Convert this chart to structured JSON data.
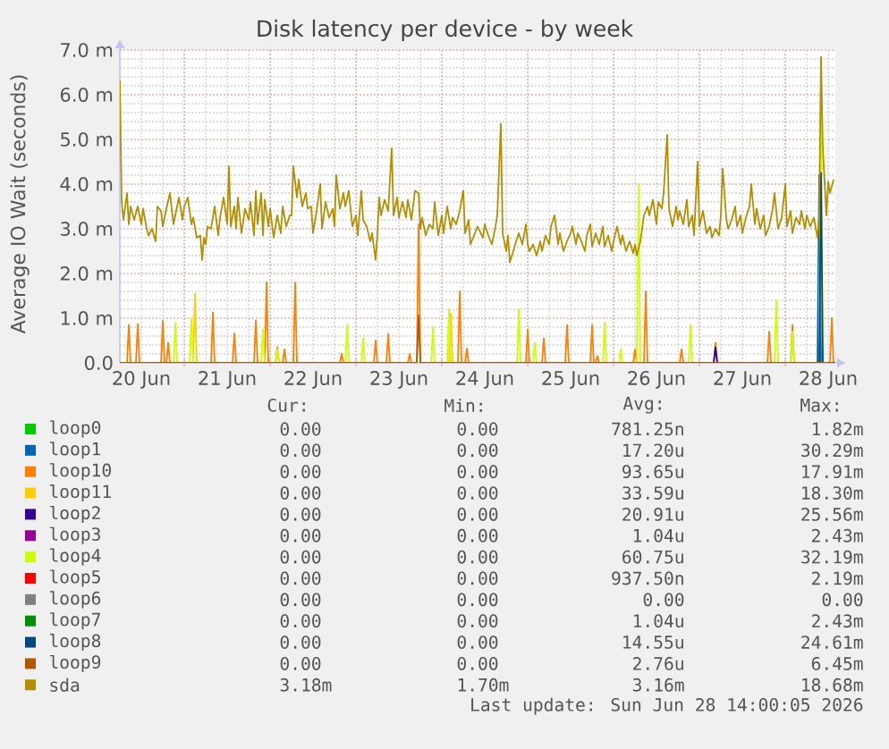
{
  "chart_data": {
    "type": "line",
    "title": "Disk latency per device - by week",
    "ylabel": "Average IO Wait (seconds)",
    "xlim": [
      "2026-06-20T06:00",
      "2026-06-28T14:00"
    ],
    "xticks": [
      {
        "value": "2026-06-20T12:00",
        "label": "20 Jun"
      },
      {
        "value": "2026-06-21T00:00",
        "label": null
      },
      {
        "value": "2026-06-21T12:00",
        "label": "21 Jun"
      },
      {
        "value": "2026-06-22T00:00",
        "label": null
      },
      {
        "value": "2026-06-22T12:00",
        "label": "22 Jun"
      },
      {
        "value": "2026-06-23T00:00",
        "label": null
      },
      {
        "value": "2026-06-23T12:00",
        "label": "23 Jun"
      },
      {
        "value": "2026-06-24T00:00",
        "label": null
      },
      {
        "value": "2026-06-24T12:00",
        "label": "24 Jun"
      },
      {
        "value": "2026-06-25T00:00",
        "label": null
      },
      {
        "value": "2026-06-25T12:00",
        "label": "25 Jun"
      },
      {
        "value": "2026-06-26T00:00",
        "label": null
      },
      {
        "value": "2026-06-26T12:00",
        "label": "26 Jun"
      },
      {
        "value": "2026-06-27T00:00",
        "label": null
      },
      {
        "value": "2026-06-27T12:00",
        "label": "27 Jun"
      },
      {
        "value": "2026-06-28T00:00",
        "label": null
      },
      {
        "value": "2026-06-28T12:00",
        "label": "28 Jun"
      }
    ],
    "ylim": [
      0,
      7
    ],
    "yticks": [
      {
        "value": 0,
        "label": "0.0"
      },
      {
        "value": 1,
        "label": "1.0 m"
      },
      {
        "value": 2,
        "label": "2.0 m"
      },
      {
        "value": 3,
        "label": "3.0 m"
      },
      {
        "value": 4,
        "label": "4.0 m"
      },
      {
        "value": 5,
        "label": "5.0 m"
      },
      {
        "value": 6,
        "label": "6.0 m"
      },
      {
        "value": 7,
        "label": "7.0 m"
      }
    ],
    "grid": true,
    "legend": "bottom",
    "series": [
      {
        "name": "loop0",
        "color": "#00cc00"
      },
      {
        "name": "loop1",
        "color": "#0066b3",
        "x": [
          "2026-06-28T09:00",
          "2026-06-28T09:30",
          "2026-06-28T10:00"
        ],
        "values": [
          0,
          4.2,
          0
        ]
      },
      {
        "name": "loop10",
        "color": "#ff8000",
        "x": [
          "2026-06-20T08:00",
          "2026-06-20T08:30",
          "2026-06-20T09:00",
          "2026-06-20T09:30",
          "2026-06-20T10:30",
          "2026-06-20T11:00",
          "2026-06-20T11:30",
          "2026-06-20T12:00",
          "2026-06-20T17:30",
          "2026-06-20T18:00",
          "2026-06-20T18:30",
          "2026-06-20T19:00",
          "2026-06-20T19:30",
          "2026-06-20T20:00",
          "2026-06-20T20:30",
          "2026-06-21T07:30",
          "2026-06-21T08:00",
          "2026-06-21T08:30",
          "2026-06-21T09:00",
          "2026-06-21T13:30",
          "2026-06-21T14:00",
          "2026-06-21T14:30",
          "2026-06-21T15:00",
          "2026-06-21T19:30",
          "2026-06-21T20:00",
          "2026-06-21T20:30",
          "2026-06-21T21:00",
          "2026-06-21T22:30",
          "2026-06-21T23:00",
          "2026-06-21T23:30",
          "2026-06-22T00:00",
          "2026-06-22T01:30",
          "2026-06-22T02:00",
          "2026-06-22T02:30",
          "2026-06-22T03:00",
          "2026-06-22T03:30",
          "2026-06-22T04:00",
          "2026-06-22T04:30",
          "2026-06-22T05:00",
          "2026-06-22T06:30",
          "2026-06-22T07:00",
          "2026-06-22T07:30",
          "2026-06-22T08:00",
          "2026-06-22T19:30",
          "2026-06-22T20:00",
          "2026-06-22T20:30",
          "2026-06-22T21:00",
          "2026-06-23T05:00",
          "2026-06-23T05:30",
          "2026-06-23T06:00",
          "2026-06-23T06:30",
          "2026-06-23T08:30",
          "2026-06-23T09:00",
          "2026-06-23T09:30",
          "2026-06-23T10:00",
          "2026-06-23T14:30",
          "2026-06-23T15:00",
          "2026-06-23T15:30",
          "2026-06-23T16:00",
          "2026-06-23T17:00",
          "2026-06-23T17:30",
          "2026-06-23T18:00",
          "2026-06-23T18:30",
          "2026-06-24T04:30",
          "2026-06-24T05:00",
          "2026-06-24T05:30",
          "2026-06-24T06:00",
          "2026-06-24T06:30",
          "2026-06-24T07:00",
          "2026-06-24T07:30",
          "2026-06-24T08:00",
          "2026-06-24T23:30",
          "2026-06-25T00:00",
          "2026-06-25T00:30",
          "2026-06-25T01:00",
          "2026-06-25T04:00",
          "2026-06-25T04:30",
          "2026-06-25T05:00",
          "2026-06-25T05:30",
          "2026-06-25T10:30",
          "2026-06-25T11:00",
          "2026-06-25T11:30",
          "2026-06-25T12:00",
          "2026-06-25T17:30",
          "2026-06-25T18:00",
          "2026-06-25T18:30",
          "2026-06-25T19:00",
          "2026-06-25T19:30",
          "2026-06-25T20:00",
          "2026-06-25T20:30",
          "2026-06-26T05:30",
          "2026-06-26T06:00",
          "2026-06-26T06:30",
          "2026-06-26T07:00",
          "2026-06-26T08:30",
          "2026-06-26T09:00",
          "2026-06-26T09:30",
          "2026-06-26T10:00",
          "2026-06-26T18:30",
          "2026-06-26T19:00",
          "2026-06-26T19:30",
          "2026-06-26T20:00",
          "2026-06-27T04:00",
          "2026-06-27T04:30",
          "2026-06-27T05:00",
          "2026-06-27T05:30",
          "2026-06-27T19:00",
          "2026-06-27T19:30",
          "2026-06-27T20:00",
          "2026-06-27T20:30",
          "2026-06-28T01:30",
          "2026-06-28T02:00",
          "2026-06-28T02:30",
          "2026-06-28T03:00",
          "2026-06-28T12:30",
          "2026-06-28T13:00",
          "2026-06-28T13:30"
        ],
        "values": [
          0,
          0.85,
          0,
          null,
          0,
          0.87,
          0,
          null,
          0,
          0.94,
          0,
          0,
          0.45,
          0,
          null,
          0,
          1.13,
          0,
          null,
          0,
          0.66,
          0,
          null,
          0,
          0.95,
          0,
          null,
          0,
          1.8,
          0,
          null,
          0,
          0.35,
          0,
          null,
          0,
          0.3,
          0,
          null,
          0,
          1.8,
          0,
          null,
          0,
          0.2,
          0,
          null,
          0,
          0.5,
          0,
          null,
          0,
          0.65,
          0,
          null,
          0,
          0.2,
          0,
          null,
          0,
          3.1,
          0,
          null,
          0,
          1.6,
          0,
          null,
          0,
          0.32,
          0,
          null,
          0,
          0.75,
          0,
          null,
          0,
          0.55,
          0,
          null,
          0,
          0.85,
          0,
          null,
          0,
          0.85,
          0,
          0,
          0.15,
          0,
          null,
          0,
          0.3,
          0,
          null,
          0,
          1.6,
          0,
          null,
          0,
          0.3,
          0,
          null,
          0,
          0.45,
          0,
          null,
          0,
          0.7,
          0,
          null,
          0,
          0.85,
          0,
          null,
          0,
          1.0,
          0
        ]
      },
      {
        "name": "loop11",
        "color": "#ffcc00",
        "x": [
          "2026-06-21T02:30",
          "2026-06-21T03:00",
          "2026-06-21T03:30",
          "2026-06-21T04:00",
          "2026-06-24T02:00",
          "2026-06-24T02:30",
          "2026-06-24T03:00"
        ],
        "values": [
          0,
          1.55,
          0,
          null,
          0,
          1.1,
          0
        ]
      },
      {
        "name": "loop2",
        "color": "#330099",
        "x": [
          "2026-06-27T04:00",
          "2026-06-27T04:30",
          "2026-06-27T05:00"
        ],
        "values": [
          0,
          0.35,
          0
        ]
      },
      {
        "name": "loop3",
        "color": "#990099"
      },
      {
        "name": "loop4",
        "color": "#ccff00",
        "x": [
          "2026-06-20T21:00",
          "2026-06-20T21:30",
          "2026-06-20T22:00",
          "2026-06-20T22:30",
          "2026-06-21T01:30",
          "2026-06-21T02:00",
          "2026-06-21T02:30",
          "2026-06-21T03:00",
          "2026-06-21T21:30",
          "2026-06-21T22:00",
          "2026-06-21T22:30",
          "2026-06-21T23:00",
          "2026-06-22T01:30",
          "2026-06-22T02:00",
          "2026-06-22T02:30",
          "2026-06-22T03:00",
          "2026-06-22T21:00",
          "2026-06-22T21:30",
          "2026-06-22T22:00",
          "2026-06-22T22:30",
          "2026-06-23T01:30",
          "2026-06-23T02:00",
          "2026-06-23T02:30",
          "2026-06-23T03:00",
          "2026-06-23T21:00",
          "2026-06-23T21:30",
          "2026-06-23T22:00",
          "2026-06-23T22:30",
          "2026-06-24T01:30",
          "2026-06-24T02:00",
          "2026-06-24T02:30",
          "2026-06-24T03:00",
          "2026-06-24T21:00",
          "2026-06-24T21:30",
          "2026-06-24T22:00",
          "2026-06-24T22:30",
          "2026-06-25T01:30",
          "2026-06-25T02:00",
          "2026-06-25T02:30",
          "2026-06-25T03:00",
          "2026-06-25T21:00",
          "2026-06-25T21:30",
          "2026-06-25T22:00",
          "2026-06-25T22:30",
          "2026-06-26T01:30",
          "2026-06-26T02:00",
          "2026-06-26T02:30",
          "2026-06-26T03:00",
          "2026-06-26T06:30",
          "2026-06-26T07:00",
          "2026-06-26T07:30",
          "2026-06-26T08:00",
          "2026-06-26T21:00",
          "2026-06-26T21:30",
          "2026-06-26T22:00",
          "2026-06-26T22:30",
          "2026-06-27T21:00",
          "2026-06-27T21:30",
          "2026-06-27T22:00",
          "2026-06-27T22:30",
          "2026-06-28T01:30",
          "2026-06-28T02:00",
          "2026-06-28T02:30",
          "2026-06-28T03:00",
          "2026-06-28T09:30",
          "2026-06-28T10:00",
          "2026-06-28T10:30"
        ],
        "values": [
          0,
          0.9,
          0,
          null,
          0,
          1.0,
          0,
          null,
          0,
          0.75,
          0,
          null,
          0,
          0.3,
          0,
          null,
          0,
          0.85,
          0,
          null,
          0,
          0.55,
          0,
          null,
          0,
          0.8,
          0,
          null,
          0,
          1.2,
          0,
          null,
          0,
          1.2,
          0,
          null,
          0,
          0.45,
          0,
          null,
          0,
          0.9,
          0,
          null,
          0,
          0.3,
          0,
          null,
          0,
          4.0,
          0,
          null,
          0,
          0.85,
          0,
          null,
          0,
          1.4,
          0,
          null,
          0,
          0.7,
          0,
          null,
          0,
          6.5,
          0
        ]
      },
      {
        "name": "loop5",
        "color": "#ff0000"
      },
      {
        "name": "loop6",
        "color": "#808080"
      },
      {
        "name": "loop7",
        "color": "#008f00"
      },
      {
        "name": "loop8",
        "color": "#00487d",
        "x": [
          "2026-06-28T09:30",
          "2026-06-28T10:00",
          "2026-06-28T10:30"
        ],
        "values": [
          0,
          4.25,
          0
        ]
      },
      {
        "name": "loop9",
        "color": "#b35a00",
        "x": [
          "2026-06-20T06:00",
          "2026-06-23T17:00",
          "2026-06-23T17:30",
          "2026-06-23T18:00",
          "2026-06-28T14:00"
        ],
        "values": [
          0,
          0,
          1.07,
          0,
          0
        ]
      },
      {
        "name": "sda",
        "color": "#b38f00",
        "x": [
          "2026-06-20T06:00",
          "2026-06-20T06:30",
          "2026-06-20T07:00",
          "2026-06-20T08:00",
          "2026-06-20T08:30",
          "2026-06-20T09:00",
          "2026-06-20T10:00",
          "2026-06-20T11:00",
          "2026-06-20T12:00",
          "2026-06-20T12:30",
          "2026-06-20T13:30",
          "2026-06-20T14:00",
          "2026-06-20T15:00",
          "2026-06-20T16:00",
          "2026-06-20T16:30",
          "2026-06-20T17:30",
          "2026-06-20T18:00",
          "2026-06-20T19:00",
          "2026-06-20T20:00",
          "2026-06-20T21:00",
          "2026-06-20T21:30",
          "2026-06-20T22:30",
          "2026-06-20T23:30",
          "2026-06-21T00:00",
          "2026-06-21T01:00",
          "2026-06-21T02:00",
          "2026-06-21T02:30",
          "2026-06-21T03:30",
          "2026-06-21T04:30",
          "2026-06-21T05:00",
          "2026-06-21T05:30",
          "2026-06-21T06:00",
          "2026-06-21T06:30",
          "2026-06-21T07:30",
          "2026-06-21T08:30",
          "2026-06-21T09:30",
          "2026-06-21T10:00",
          "2026-06-21T11:00",
          "2026-06-21T12:00",
          "2026-06-21T12:30",
          "2026-06-21T13:00",
          "2026-06-21T14:00",
          "2026-06-21T14:30",
          "2026-06-21T15:00",
          "2026-06-21T16:00",
          "2026-06-21T17:00",
          "2026-06-21T18:00",
          "2026-06-21T18:30",
          "2026-06-21T19:30",
          "2026-06-21T20:00",
          "2026-06-21T20:30",
          "2026-06-21T21:30",
          "2026-06-21T22:00",
          "2026-06-21T22:30",
          "2026-06-21T23:30",
          "2026-06-22T00:00",
          "2026-06-22T01:00",
          "2026-06-22T02:00",
          "2026-06-22T03:00",
          "2026-06-22T03:30",
          "2026-06-22T04:30",
          "2026-06-22T05:30",
          "2026-06-22T06:00",
          "2026-06-22T06:30",
          "2026-06-22T07:30",
          "2026-06-22T08:00",
          "2026-06-22T09:00",
          "2026-06-22T10:00",
          "2026-06-22T10:30",
          "2026-06-22T11:30",
          "2026-06-22T12:00",
          "2026-06-22T13:00",
          "2026-06-22T14:00",
          "2026-06-22T14:30",
          "2026-06-22T15:30",
          "2026-06-22T16:30",
          "2026-06-22T17:30",
          "2026-06-22T18:00",
          "2026-06-22T18:30",
          "2026-06-22T19:30",
          "2026-06-22T20:30",
          "2026-06-22T21:00",
          "2026-06-22T22:00",
          "2026-06-22T23:00",
          "2026-06-23T00:00",
          "2026-06-23T00:30",
          "2026-06-23T01:30",
          "2026-06-23T02:00",
          "2026-06-23T03:00",
          "2026-06-23T04:00",
          "2026-06-23T04:30",
          "2026-06-23T05:30",
          "2026-06-23T06:00",
          "2026-06-23T06:30",
          "2026-06-23T07:00",
          "2026-06-23T08:00",
          "2026-06-23T09:00",
          "2026-06-23T10:00",
          "2026-06-23T10:30",
          "2026-06-23T11:30",
          "2026-06-23T12:00",
          "2026-06-23T13:00",
          "2026-06-23T14:00",
          "2026-06-23T14:30",
          "2026-06-23T15:30",
          "2026-06-23T16:30",
          "2026-06-23T17:30",
          "2026-06-23T18:00",
          "2026-06-23T18:30",
          "2026-06-23T19:30",
          "2026-06-23T20:30",
          "2026-06-23T21:30",
          "2026-06-23T22:00",
          "2026-06-23T23:00",
          "2026-06-24T00:00",
          "2026-06-24T00:30",
          "2026-06-24T01:30",
          "2026-06-24T02:30",
          "2026-06-24T03:00",
          "2026-06-24T04:00",
          "2026-06-24T05:00",
          "2026-06-24T06:00",
          "2026-06-24T06:30",
          "2026-06-24T07:30",
          "2026-06-24T08:00",
          "2026-06-24T09:00",
          "2026-06-24T10:00",
          "2026-06-24T11:30",
          "2026-06-24T12:00",
          "2026-06-24T13:00",
          "2026-06-24T14:00",
          "2026-06-24T15:00",
          "2026-06-24T15:30",
          "2026-06-24T16:30",
          "2026-06-24T17:00",
          "2026-06-24T18:00",
          "2026-06-24T18:30",
          "2026-06-24T19:00",
          "2026-06-24T20:00",
          "2026-06-24T20:30",
          "2026-06-24T21:30",
          "2026-06-24T22:30",
          "2026-06-24T23:30",
          "2026-06-25T00:00",
          "2026-06-25T00:30",
          "2026-06-25T01:30",
          "2026-06-25T02:30",
          "2026-06-25T03:30",
          "2026-06-25T04:00",
          "2026-06-25T05:00",
          "2026-06-25T06:00",
          "2026-06-25T06:30",
          "2026-06-25T07:30",
          "2026-06-25T08:30",
          "2026-06-25T09:00",
          "2026-06-25T10:00",
          "2026-06-25T11:00",
          "2026-06-25T12:00",
          "2026-06-25T12:30",
          "2026-06-25T13:30",
          "2026-06-25T14:00",
          "2026-06-25T15:00",
          "2026-06-25T16:00",
          "2026-06-25T16:30",
          "2026-06-25T17:30",
          "2026-06-25T18:00",
          "2026-06-25T19:00",
          "2026-06-25T20:00",
          "2026-06-25T21:00",
          "2026-06-25T21:30",
          "2026-06-25T22:30",
          "2026-06-25T23:30",
          "2026-06-26T00:00",
          "2026-06-26T01:00",
          "2026-06-26T02:00",
          "2026-06-26T02:30",
          "2026-06-26T03:30",
          "2026-06-26T04:30",
          "2026-06-26T05:30",
          "2026-06-26T06:00",
          "2026-06-26T06:30",
          "2026-06-26T07:30",
          "2026-06-26T08:30",
          "2026-06-26T09:30",
          "2026-06-26T10:00",
          "2026-06-26T11:00",
          "2026-06-26T12:00",
          "2026-06-26T12:30",
          "2026-06-26T13:30",
          "2026-06-26T14:00",
          "2026-06-26T15:00",
          "2026-06-26T15:30",
          "2026-06-26T16:30",
          "2026-06-26T17:30",
          "2026-06-26T18:00",
          "2026-06-26T18:30",
          "2026-06-26T19:30",
          "2026-06-26T20:30",
          "2026-06-26T21:00",
          "2026-06-26T22:00",
          "2026-06-26T22:30",
          "2026-06-26T23:30",
          "2026-06-27T00:00",
          "2026-06-27T01:00",
          "2026-06-27T02:00",
          "2026-06-27T03:00",
          "2026-06-27T03:30",
          "2026-06-27T04:30",
          "2026-06-27T05:30",
          "2026-06-27T06:00",
          "2026-06-27T06:30",
          "2026-06-27T07:30",
          "2026-06-27T08:00",
          "2026-06-27T09:00",
          "2026-06-27T10:00",
          "2026-06-27T10:30",
          "2026-06-27T11:30",
          "2026-06-27T12:00",
          "2026-06-27T13:00",
          "2026-06-27T14:00",
          "2026-06-27T14:30",
          "2026-06-27T15:30",
          "2026-06-27T16:00",
          "2026-06-27T17:00",
          "2026-06-27T18:00",
          "2026-06-27T18:30",
          "2026-06-27T19:30",
          "2026-06-27T20:30",
          "2026-06-27T21:00",
          "2026-06-27T22:00",
          "2026-06-27T23:00",
          "2026-06-28T00:00",
          "2026-06-28T00:30",
          "2026-06-28T01:30",
          "2026-06-28T02:00",
          "2026-06-28T03:00",
          "2026-06-28T04:00",
          "2026-06-28T04:30",
          "2026-06-28T05:30",
          "2026-06-28T06:00",
          "2026-06-28T07:00",
          "2026-06-28T08:00",
          "2026-06-28T09:00",
          "2026-06-28T09:30",
          "2026-06-28T10:00",
          "2026-06-28T10:30",
          "2026-06-28T11:30",
          "2026-06-28T12:00",
          "2026-06-28T12:30",
          "2026-06-28T13:30"
        ],
        "values": [
          6.32,
          3.6,
          3.2,
          3.8,
          3.1,
          3.5,
          3.2,
          3.5,
          3.1,
          3.45,
          3.0,
          2.85,
          3.0,
          2.72,
          3.5,
          3.4,
          3.05,
          3.45,
          3.8,
          3.1,
          3.3,
          3.7,
          3.2,
          3.5,
          3.7,
          3.1,
          3.25,
          2.8,
          2.85,
          2.3,
          2.8,
          2.65,
          3.05,
          3.0,
          3.5,
          2.85,
          3.25,
          3.7,
          3.1,
          4.4,
          3.05,
          3.5,
          3.0,
          3.7,
          2.9,
          3.45,
          3.2,
          3.6,
          2.85,
          3.85,
          3.1,
          3.8,
          2.85,
          3.65,
          3.05,
          3.45,
          2.8,
          3.3,
          2.9,
          3.5,
          3.05,
          3.3,
          3.3,
          4.4,
          3.7,
          4.1,
          3.5,
          3.8,
          3.45,
          3.5,
          2.9,
          3.4,
          4.0,
          3.0,
          3.6,
          3.25,
          3.45,
          3.05,
          4.2,
          3.45,
          3.8,
          3.5,
          3.85,
          3.05,
          3.3,
          2.85,
          3.85,
          3.2,
          3.05,
          2.72,
          2.9,
          2.3,
          2.9,
          3.7,
          3.3,
          3.65,
          3.4,
          4.8,
          3.3,
          3.7,
          3.25,
          3.6,
          3.25,
          3.65,
          3.2,
          3.85,
          3.8,
          3.0,
          3.25,
          2.85,
          3.1,
          3.0,
          3.6,
          2.85,
          3.3,
          2.9,
          3.5,
          3.0,
          3.25,
          3.1,
          3.4,
          3.85,
          2.9,
          3.2,
          2.65,
          2.85,
          3.05,
          2.8,
          3.1,
          2.85,
          2.65,
          3.05,
          3.3,
          5.35,
          2.9,
          2.5,
          2.85,
          2.25,
          2.5,
          2.65,
          2.9,
          2.65,
          3.1,
          2.65,
          2.5,
          2.65,
          2.4,
          2.72,
          2.5,
          2.85,
          2.65,
          3.05,
          3.3,
          2.65,
          2.9,
          2.5,
          2.72,
          2.9,
          3.05,
          2.65,
          2.9,
          2.72,
          2.5,
          2.85,
          3.1,
          2.6,
          2.9,
          2.65,
          3.05,
          2.6,
          2.85,
          2.5,
          2.72,
          3.05,
          2.65,
          2.85,
          2.5,
          2.72,
          2.45,
          2.65,
          2.4,
          2.72,
          3.3,
          3.5,
          3.3,
          3.65,
          3.1,
          3.6,
          3.45,
          3.8,
          5.1,
          3.45,
          3.05,
          3.5,
          3.2,
          3.4,
          3.1,
          3.65,
          3.05,
          3.3,
          2.85,
          4.5,
          3.05,
          3.4,
          2.9,
          3.05,
          2.8,
          3.0,
          2.85,
          3.3,
          4.35,
          3.25,
          3.0,
          3.2,
          3.5,
          3.05,
          3.3,
          2.9,
          3.25,
          3.5,
          4.0,
          3.1,
          3.45,
          3.0,
          3.3,
          2.85,
          3.05,
          3.45,
          3.8,
          3.0,
          3.25,
          4.0,
          3.05,
          3.4,
          2.9,
          3.25,
          3.1,
          3.4,
          3.0,
          3.3,
          3.05,
          3.25,
          2.8,
          3.3,
          6.85,
          4.8,
          3.3,
          4.05,
          3.8,
          4.1
        ]
      }
    ],
    "annotations": [
      "Cur:",
      "Min:",
      "Avg:",
      "Max:",
      "0.00",
      "0.00",
      "781.25n",
      "1.82m",
      "0.00",
      "0.00",
      "17.20u",
      "30.29m",
      "0.00",
      "0.00",
      "93.65u",
      "17.91m",
      "0.00",
      "0.00",
      "33.59u",
      "18.30m",
      "0.00",
      "0.00",
      "20.91u",
      "25.56m",
      "0.00",
      "0.00",
      "1.04u",
      "2.43m",
      "0.00",
      "0.00",
      "60.75u",
      "32.19m",
      "0.00",
      "0.00",
      "937.50n",
      "2.19m",
      "0.00",
      "0.00",
      "0.00",
      "0.00",
      "0.00",
      "0.00",
      "1.04u",
      "2.43m",
      "0.00",
      "0.00",
      "14.55u",
      "24.61m",
      "0.00",
      "0.00",
      "2.76u",
      "6.45m",
      "3.18m",
      "1.70m",
      "3.16m",
      "18.68m",
      "Last update: Sun Jun 28 14:00:05 2026"
    ]
  }
}
